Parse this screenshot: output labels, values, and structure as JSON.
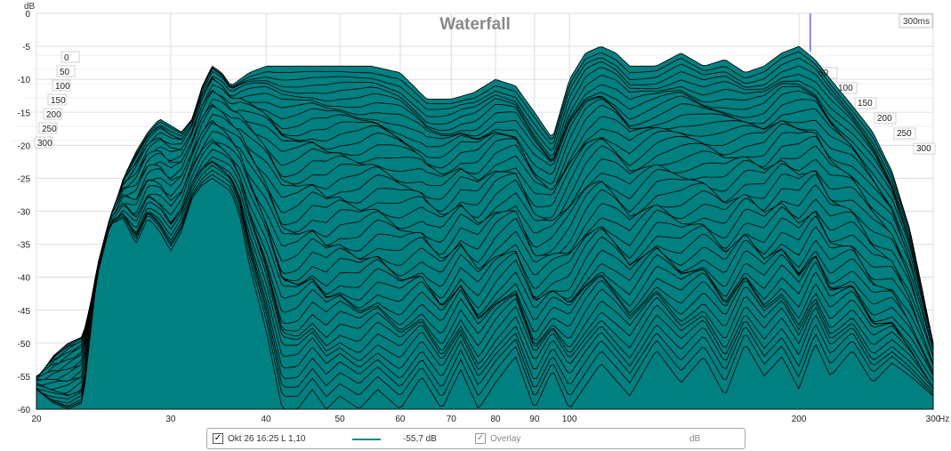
{
  "chart_data": {
    "type": "area",
    "title": "Waterfall",
    "x_unit_label": "Hz",
    "y_unit_label": "dB",
    "x_scale": "log",
    "xlim": [
      20,
      300
    ],
    "ylim": [
      -60,
      0
    ],
    "x_ticks": [
      20,
      30,
      40,
      50,
      60,
      70,
      80,
      90,
      100,
      200,
      300
    ],
    "y_ticks": [
      0,
      -5,
      -10,
      -15,
      -20,
      -25,
      -30,
      -35,
      -40,
      -45,
      -50,
      -55,
      -60
    ],
    "time_axis_label": "300ms",
    "time_ticks_left": [
      "0",
      "50",
      "100",
      "150",
      "200",
      "250",
      "300"
    ],
    "time_ticks_right": [
      "50",
      "100",
      "150",
      "200",
      "250",
      "300"
    ],
    "slice_count": 48,
    "fill_color": "#008080",
    "line_color": "#000000",
    "grid": true,
    "marker_x": 207,
    "front_slice": {
      "x": [
        20,
        21,
        22,
        23,
        24,
        25,
        26,
        27,
        28,
        29,
        30,
        31,
        32,
        33,
        34,
        35,
        36,
        37,
        38,
        40,
        42,
        44,
        46,
        48,
        50,
        53,
        56,
        60,
        64,
        68,
        72,
        76,
        80,
        85,
        90,
        95,
        100,
        110,
        120,
        130,
        140,
        150,
        160,
        170,
        180,
        190,
        200,
        210,
        220,
        235,
        250,
        265,
        280,
        300
      ],
      "y": [
        -57,
        -59,
        -60,
        -59,
        -40,
        -32,
        -31,
        -35,
        -31,
        -33,
        -36,
        -33,
        -28,
        -26,
        -25,
        -26,
        -27,
        -31,
        -38,
        -48,
        -60,
        -60,
        -57,
        -60,
        -58,
        -60,
        -57,
        -60,
        -55,
        -60,
        -54,
        -60,
        -56,
        -52,
        -60,
        -54,
        -60,
        -53,
        -58,
        -51,
        -56,
        -52,
        -58,
        -50,
        -55,
        -52,
        -57,
        -50,
        -55,
        -51,
        -56,
        -53,
        -55,
        -58
      ]
    },
    "back_slice": {
      "x": [
        20,
        21,
        22,
        23,
        24,
        25,
        26,
        27,
        28,
        29,
        30,
        31,
        32,
        33,
        34,
        35,
        36,
        38,
        40,
        43,
        46,
        50,
        55,
        60,
        65,
        70,
        75,
        80,
        85,
        90,
        95,
        100,
        105,
        110,
        115,
        120,
        130,
        140,
        150,
        160,
        170,
        180,
        190,
        200,
        210,
        220,
        235,
        250,
        265,
        280,
        300
      ],
      "y": [
        -56,
        -52,
        -50,
        -49,
        -40,
        -32,
        -25,
        -21,
        -18,
        -16,
        -17,
        -18,
        -16,
        -11,
        -8,
        -9,
        -11,
        -9,
        -8,
        -8,
        -8,
        -8,
        -8,
        -9,
        -13,
        -13,
        -12,
        -10,
        -11,
        -15,
        -19,
        -10,
        -6,
        -5,
        -6,
        -8,
        -8,
        -6,
        -8,
        -7,
        -9,
        -8,
        -6,
        -5,
        -7,
        -10,
        -14,
        -18,
        -24,
        -33,
        -50
      ]
    },
    "legend": [
      {
        "checked": true,
        "name": "Okt 26 16:25 L 1,10",
        "value": "-55,7 dB"
      },
      {
        "checked": true,
        "disabled": true,
        "name": "Overlay",
        "unit": "dB"
      }
    ]
  }
}
